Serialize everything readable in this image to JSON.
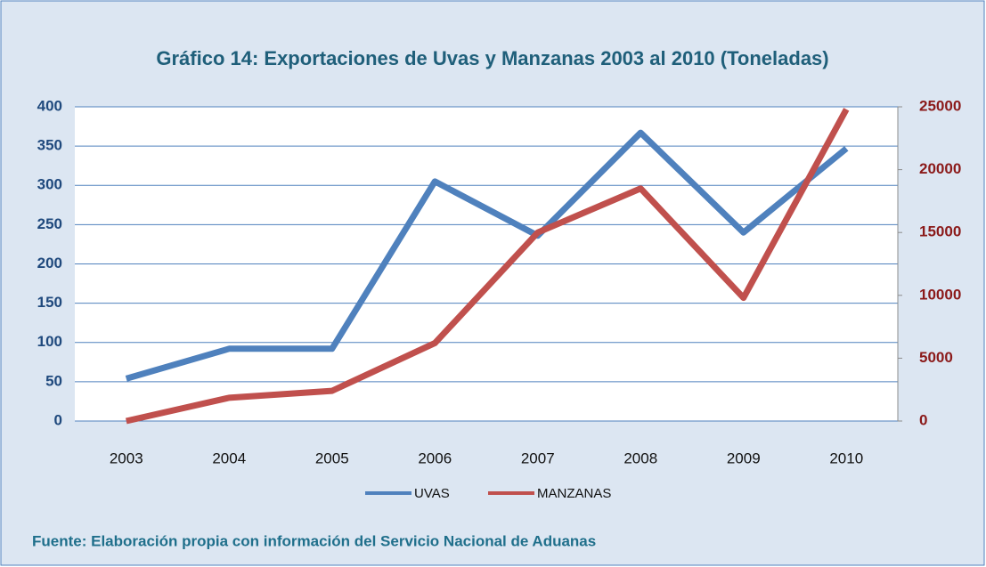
{
  "chart_data": {
    "type": "line",
    "title": "Gráfico 14: Exportaciones de Uvas y Manzanas 2003 al 2010 (Toneladas)",
    "categories": [
      "2003",
      "2004",
      "2005",
      "2006",
      "2007",
      "2008",
      "2009",
      "2010"
    ],
    "series": [
      {
        "name": "UVAS",
        "color": "#4f81bd",
        "values": [
          54,
          92,
          92,
          305,
          236,
          367,
          240,
          347
        ]
      },
      {
        "name": "MANZANAS",
        "color": "#c0504d",
        "axis": "y2",
        "values": [
          0,
          1850,
          2400,
          6200,
          15000,
          18500,
          9800,
          24800
        ]
      }
    ],
    "ylim": [
      0,
      400
    ],
    "yticks": [
      0,
      50,
      100,
      150,
      200,
      250,
      300,
      350,
      400
    ],
    "y2lim": [
      0,
      25000
    ],
    "y2ticks": [
      0,
      5000,
      10000,
      15000,
      20000,
      25000
    ],
    "grid": true,
    "legend": "bottom",
    "source": "Fuente: Elaboración propia con información del Servicio Nacional de Aduanas"
  }
}
